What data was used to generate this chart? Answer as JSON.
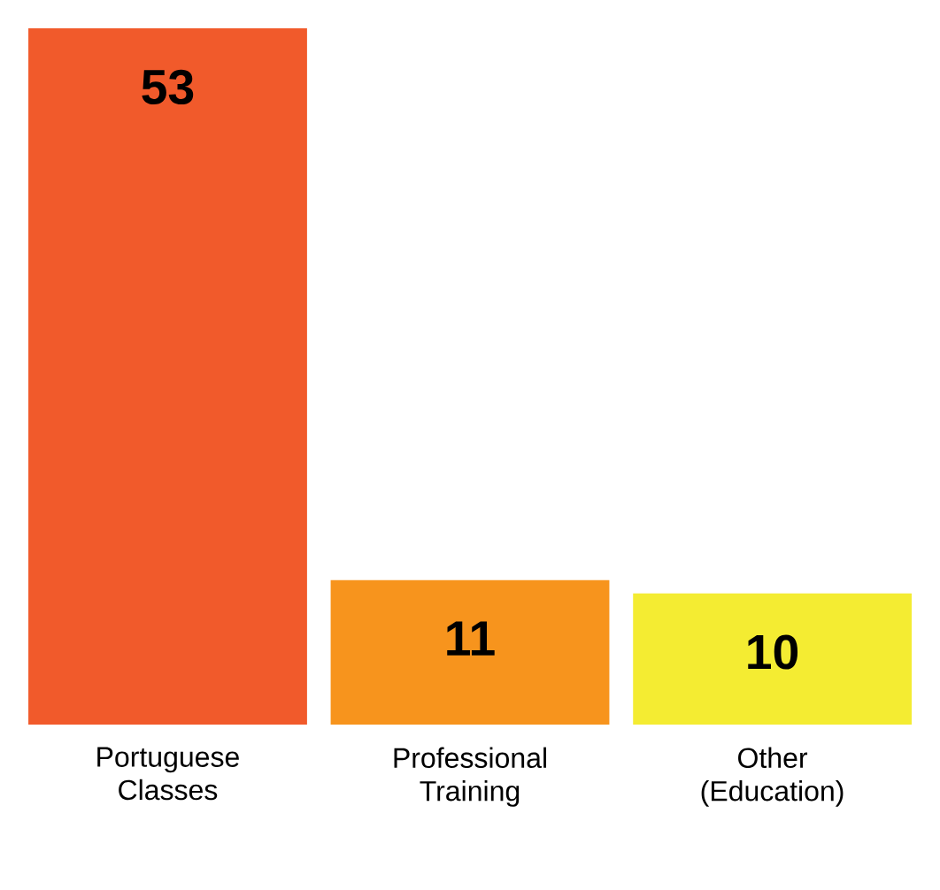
{
  "chart_data": {
    "type": "bar",
    "categories": [
      "Portuguese Classes",
      "Professional Training",
      "Other (Education)"
    ],
    "values": [
      53,
      11,
      10
    ],
    "colors": [
      "#f15a2b",
      "#f7941d",
      "#f4ec32"
    ],
    "data_labels": true
  }
}
